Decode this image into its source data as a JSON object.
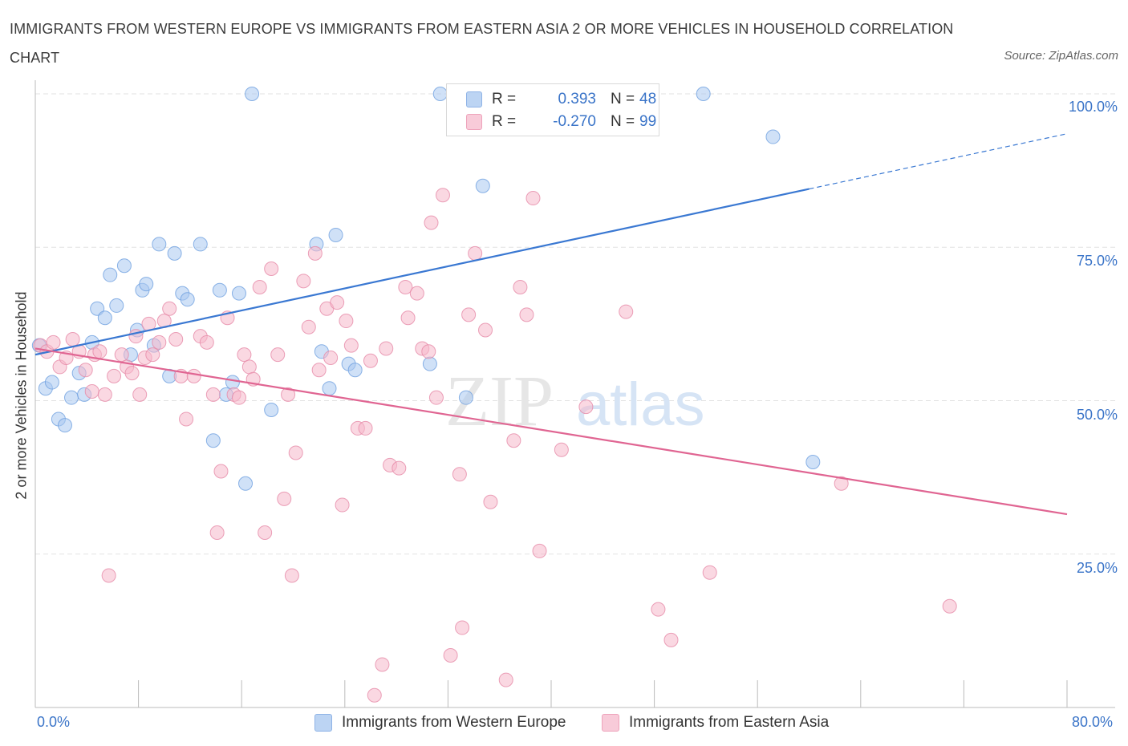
{
  "title": "IMMIGRANTS FROM WESTERN EUROPE VS IMMIGRANTS FROM EASTERN ASIA 2 OR MORE VEHICLES IN HOUSEHOLD CORRELATION CHART",
  "source": "Source: ZipAtlas.com",
  "legend_top": {
    "rows": [
      {
        "r_label": "R =",
        "r_value": "0.393",
        "n_label": "N =",
        "n_value": "48",
        "color": "#a9c8f0"
      },
      {
        "r_label": "R =",
        "r_value": "-0.270",
        "n_label": "N =",
        "n_value": "99",
        "color": "#f5b8cb"
      }
    ]
  },
  "legend_bottom": {
    "items": [
      {
        "label": "Immigrants from Western Europe",
        "color": "#a9c8f0"
      },
      {
        "label": "Immigrants from Eastern Asia",
        "color": "#f5b8cb"
      }
    ]
  },
  "watermark": {
    "zip": "ZIP",
    "atlas": "atlas"
  },
  "chart_data": {
    "type": "scatter",
    "xlabel": "",
    "ylabel": "2 or more Vehicles in Household",
    "xlim": [
      0,
      80
    ],
    "ylim": [
      0,
      100
    ],
    "x_tick_labels": [
      "0.0%",
      "80.0%"
    ],
    "y_ticks": [
      25,
      50,
      75,
      100
    ],
    "y_tick_labels": [
      "25.0%",
      "50.0%",
      "75.0%",
      "100.0%"
    ],
    "grid": true,
    "series": [
      {
        "name": "Immigrants from Western Europe",
        "color": "#6fa0e0",
        "fill": "#a9c8f0",
        "trend": {
          "x0": 0,
          "y0": 57.5,
          "x1": 60,
          "y1": 84.5,
          "dashed_to_x": 80,
          "dashed_to_y": 93.5,
          "color": "#3a78d2"
        },
        "points": [
          [
            0.3,
            59
          ],
          [
            0.8,
            52
          ],
          [
            1.3,
            53
          ],
          [
            1.8,
            47
          ],
          [
            2.3,
            46
          ],
          [
            2.8,
            50.5
          ],
          [
            3.4,
            54.5
          ],
          [
            3.8,
            51
          ],
          [
            4.4,
            59.5
          ],
          [
            4.8,
            65
          ],
          [
            5.4,
            63.5
          ],
          [
            5.8,
            70.5
          ],
          [
            6.3,
            65.5
          ],
          [
            6.9,
            72
          ],
          [
            7.4,
            57.5
          ],
          [
            7.9,
            61.5
          ],
          [
            8.3,
            68
          ],
          [
            8.6,
            69
          ],
          [
            9.2,
            59
          ],
          [
            9.6,
            75.5
          ],
          [
            10.4,
            54
          ],
          [
            10.8,
            74
          ],
          [
            11.4,
            67.5
          ],
          [
            11.8,
            66.5
          ],
          [
            12.8,
            75.5
          ],
          [
            13.8,
            43.5
          ],
          [
            14.3,
            68
          ],
          [
            14.8,
            51
          ],
          [
            15.3,
            53
          ],
          [
            15.8,
            67.5
          ],
          [
            16.3,
            36.5
          ],
          [
            16.8,
            100
          ],
          [
            18.3,
            48.5
          ],
          [
            21.8,
            75.5
          ],
          [
            22.2,
            58
          ],
          [
            22.8,
            52
          ],
          [
            23.3,
            77
          ],
          [
            24.3,
            56
          ],
          [
            24.8,
            55
          ],
          [
            30.6,
            56
          ],
          [
            33.4,
            50.5
          ],
          [
            31.4,
            100
          ],
          [
            34.7,
            85
          ],
          [
            47.5,
            100
          ],
          [
            51.8,
            100
          ],
          [
            57.2,
            93
          ],
          [
            60.3,
            40
          ]
        ]
      },
      {
        "name": "Immigrants from Eastern Asia",
        "color": "#e68aa8",
        "fill": "#f5b8cb",
        "trend": {
          "x0": 0,
          "y0": 58.5,
          "x1": 80,
          "y1": 31.5,
          "color": "#e06592"
        },
        "points": [
          [
            0.4,
            59
          ],
          [
            0.9,
            58
          ],
          [
            1.4,
            59.5
          ],
          [
            1.9,
            55.5
          ],
          [
            2.4,
            57
          ],
          [
            2.9,
            60
          ],
          [
            3.4,
            58
          ],
          [
            3.9,
            55
          ],
          [
            4.4,
            51.5
          ],
          [
            4.6,
            57.5
          ],
          [
            5.0,
            58
          ],
          [
            5.4,
            51
          ],
          [
            5.7,
            21.5
          ],
          [
            6.1,
            54
          ],
          [
            6.7,
            57.5
          ],
          [
            7.1,
            55.5
          ],
          [
            7.5,
            54.5
          ],
          [
            7.8,
            60.5
          ],
          [
            8.1,
            51
          ],
          [
            8.5,
            57
          ],
          [
            8.8,
            62.5
          ],
          [
            9.1,
            57.5
          ],
          [
            9.6,
            59.5
          ],
          [
            10.0,
            63
          ],
          [
            10.4,
            65
          ],
          [
            10.9,
            60
          ],
          [
            11.3,
            54
          ],
          [
            11.7,
            47
          ],
          [
            12.3,
            54
          ],
          [
            12.8,
            60.5
          ],
          [
            13.3,
            59.5
          ],
          [
            13.8,
            51
          ],
          [
            14.1,
            28.5
          ],
          [
            14.4,
            38.5
          ],
          [
            14.9,
            63.5
          ],
          [
            15.4,
            51
          ],
          [
            15.8,
            50.5
          ],
          [
            16.2,
            57.5
          ],
          [
            16.6,
            55.5
          ],
          [
            16.9,
            53.5
          ],
          [
            17.4,
            68.5
          ],
          [
            17.8,
            28.5
          ],
          [
            18.3,
            71.5
          ],
          [
            18.8,
            57.5
          ],
          [
            19.3,
            34
          ],
          [
            19.6,
            51
          ],
          [
            19.9,
            21.5
          ],
          [
            20.2,
            41.5
          ],
          [
            20.8,
            69.5
          ],
          [
            21.2,
            62
          ],
          [
            21.7,
            74
          ],
          [
            22.0,
            55
          ],
          [
            22.6,
            65
          ],
          [
            22.9,
            57
          ],
          [
            23.4,
            66
          ],
          [
            23.8,
            33
          ],
          [
            24.1,
            63
          ],
          [
            24.5,
            59
          ],
          [
            25.0,
            45.5
          ],
          [
            25.6,
            45.5
          ],
          [
            26.0,
            56.5
          ],
          [
            26.3,
            2
          ],
          [
            26.9,
            7
          ],
          [
            27.2,
            58.5
          ],
          [
            27.5,
            39.5
          ],
          [
            28.2,
            39
          ],
          [
            28.7,
            68.5
          ],
          [
            28.9,
            63.5
          ],
          [
            29.6,
            67.5
          ],
          [
            30.0,
            58.5
          ],
          [
            30.5,
            58
          ],
          [
            30.7,
            79
          ],
          [
            31.1,
            50.5
          ],
          [
            31.6,
            83.5
          ],
          [
            32.2,
            8.5
          ],
          [
            32.9,
            38
          ],
          [
            33.1,
            13
          ],
          [
            33.6,
            64
          ],
          [
            34.1,
            74
          ],
          [
            34.9,
            61.5
          ],
          [
            35.3,
            33.5
          ],
          [
            36.5,
            4.5
          ],
          [
            37.1,
            43.5
          ],
          [
            37.6,
            68.5
          ],
          [
            38.1,
            64
          ],
          [
            38.6,
            83
          ],
          [
            39.1,
            25.5
          ],
          [
            40.8,
            42
          ],
          [
            42.7,
            49
          ],
          [
            45.8,
            64.5
          ],
          [
            48.3,
            16
          ],
          [
            49.3,
            11
          ],
          [
            52.3,
            22
          ],
          [
            62.5,
            36.5
          ],
          [
            70.9,
            16.5
          ]
        ]
      }
    ]
  }
}
